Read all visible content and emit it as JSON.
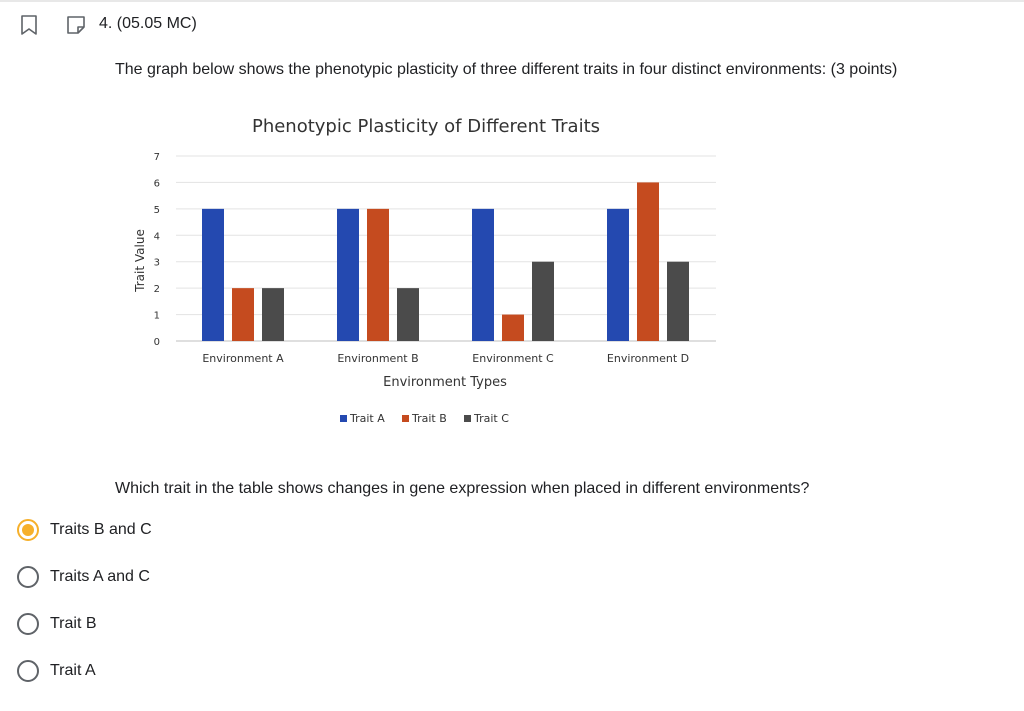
{
  "question": {
    "number_label": "4. (05.05 MC)",
    "prompt": "The graph below shows the phenotypic plasticity of three different traits in four distinct environments: (3 points)",
    "ask": "Which trait in the table shows changes in gene expression when placed in different environments?"
  },
  "options": [
    {
      "label": "Traits B and C",
      "selected": true
    },
    {
      "label": "Traits A and C",
      "selected": false
    },
    {
      "label": "Trait B",
      "selected": false
    },
    {
      "label": "Trait A",
      "selected": false
    }
  ],
  "colors": {
    "selected_radio": "#f6b02b",
    "trait_a": "#2449b0",
    "trait_b": "#c54b1f",
    "trait_c": "#4b4b4b"
  },
  "icons": {
    "bookmark": "bookmark-icon",
    "flag": "flag-icon"
  },
  "chart_data": {
    "type": "bar",
    "title": "Phenotypic Plasticity of Different Traits",
    "xlabel": "Environment Types",
    "ylabel": "Trait Value",
    "categories": [
      "Environment A",
      "Environment B",
      "Environment C",
      "Environment D"
    ],
    "series": [
      {
        "name": "Trait A",
        "values": [
          5,
          5,
          5,
          5
        ],
        "color": "#2449b0"
      },
      {
        "name": "Trait B",
        "values": [
          2,
          5,
          1,
          6
        ],
        "color": "#c54b1f"
      },
      {
        "name": "Trait C",
        "values": [
          2,
          2,
          3,
          3
        ],
        "color": "#4b4b4b"
      }
    ],
    "ylim": [
      0,
      7
    ],
    "yticks": [
      0,
      1,
      2,
      3,
      4,
      5,
      6,
      7
    ],
    "grid": true,
    "legend_position": "bottom"
  }
}
